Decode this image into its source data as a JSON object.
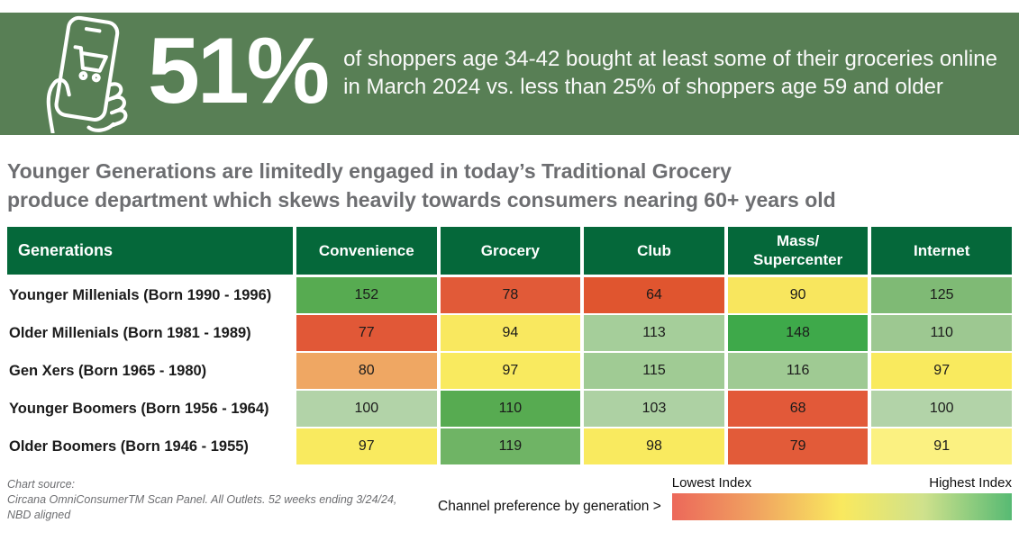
{
  "colors": {
    "banner_bg": "#587f55",
    "table_header_bg": "#05683a",
    "headline_text": "#6d6e71",
    "cell_text": "#1b1b1b"
  },
  "hero": {
    "percent": "51%",
    "line1": "of shoppers age 34-42 bought at least some of their groceries online",
    "line2": "in March 2024 vs. less than 25% of shoppers age 59 and older",
    "icon": "hand-holding-phone-with-shopping-cart-icon"
  },
  "headline": {
    "line1": "Younger Generations are limitedly engaged in today’s Traditional Grocery",
    "line2": "produce department which skews heavily towards consumers nearing 60+ years old"
  },
  "table": {
    "columns": [
      "Generations",
      "Convenience",
      "Grocery",
      "Club",
      "Mass/\nSupercenter",
      "Internet"
    ],
    "rows": [
      {
        "label": "Younger Millenials (Born 1990 - 1996)",
        "cells": [
          {
            "value": "152",
            "color": "#57ab51"
          },
          {
            "value": "78",
            "color": "#e15a38"
          },
          {
            "value": "64",
            "color": "#e0552f"
          },
          {
            "value": "90",
            "color": "#f8e65e"
          },
          {
            "value": "125",
            "color": "#7fba75"
          }
        ]
      },
      {
        "label": "Older Millenials (Born 1981 - 1989)",
        "cells": [
          {
            "value": "77",
            "color": "#e15837"
          },
          {
            "value": "94",
            "color": "#f9e85f"
          },
          {
            "value": "113",
            "color": "#a5ce9a"
          },
          {
            "value": "148",
            "color": "#3ea94a"
          },
          {
            "value": "110",
            "color": "#9dc891"
          }
        ]
      },
      {
        "label": "Gen Xers (Born 1965 - 1980)",
        "cells": [
          {
            "value": "80",
            "color": "#efa763"
          },
          {
            "value": "97",
            "color": "#f9ea5f"
          },
          {
            "value": "115",
            "color": "#a0cb94"
          },
          {
            "value": "116",
            "color": "#9fca93"
          },
          {
            "value": "97",
            "color": "#f9ea5e"
          }
        ]
      },
      {
        "label": "Younger Boomers (Born 1956 - 1964)",
        "cells": [
          {
            "value": "100",
            "color": "#b2d3a8"
          },
          {
            "value": "110",
            "color": "#57ab51"
          },
          {
            "value": "103",
            "color": "#add1a3"
          },
          {
            "value": "68",
            "color": "#e25939"
          },
          {
            "value": "100",
            "color": "#b2d3a8"
          }
        ]
      },
      {
        "label": "Older Boomers (Born 1946 - 1955)",
        "cells": [
          {
            "value": "97",
            "color": "#f9ea5f"
          },
          {
            "value": "119",
            "color": "#6fb465"
          },
          {
            "value": "98",
            "color": "#f9ea5f"
          },
          {
            "value": "79",
            "color": "#e25b39"
          },
          {
            "value": "91",
            "color": "#fbf181"
          }
        ]
      }
    ]
  },
  "footer": {
    "source_label": "Chart source:",
    "source_line1": "Circana OmniConsumerTM Scan Panel. All Outlets. 52 weeks ending 3/24/24,",
    "source_line2": "NBD aligned",
    "legend_caption": "Channel preference by generation >",
    "legend_low": "Lowest Index",
    "legend_high": "Highest Index",
    "gradient": [
      "#ec685a 0%",
      "#f0a160 24%",
      "#f9e95f 50%",
      "#cfe18c 74%",
      "#57ba73 100%"
    ]
  },
  "chart_data": {
    "type": "heatmap",
    "title": "Younger Generations are limitedly engaged in today’s Traditional Grocery produce department which skews heavily towards consumers nearing 60+ years old",
    "categories": [
      "Convenience",
      "Grocery",
      "Club",
      "Mass/Supercenter",
      "Internet"
    ],
    "rows": [
      "Younger Millenials (Born 1990 - 1996)",
      "Older Millenials (Born 1981 - 1989)",
      "Gen Xers (Born 1965 - 1980)",
      "Younger Boomers (Born 1956 - 1964)",
      "Older Boomers (Born 1946 - 1955)"
    ],
    "values": [
      [
        152,
        78,
        64,
        90,
        125
      ],
      [
        77,
        94,
        113,
        148,
        110
      ],
      [
        80,
        97,
        115,
        116,
        97
      ],
      [
        100,
        110,
        103,
        68,
        100
      ],
      [
        97,
        119,
        98,
        79,
        91
      ]
    ],
    "legend": {
      "low_label": "Lowest Index",
      "high_label": "Highest Index"
    },
    "color_scale": "red-yellow-green, low index = red, high index = green",
    "callout": {
      "value": "51%",
      "text": "of shoppers age 34-42 bought at least some of their groceries online in March 2024 vs. less than 25% of shoppers age 59 and older"
    }
  }
}
